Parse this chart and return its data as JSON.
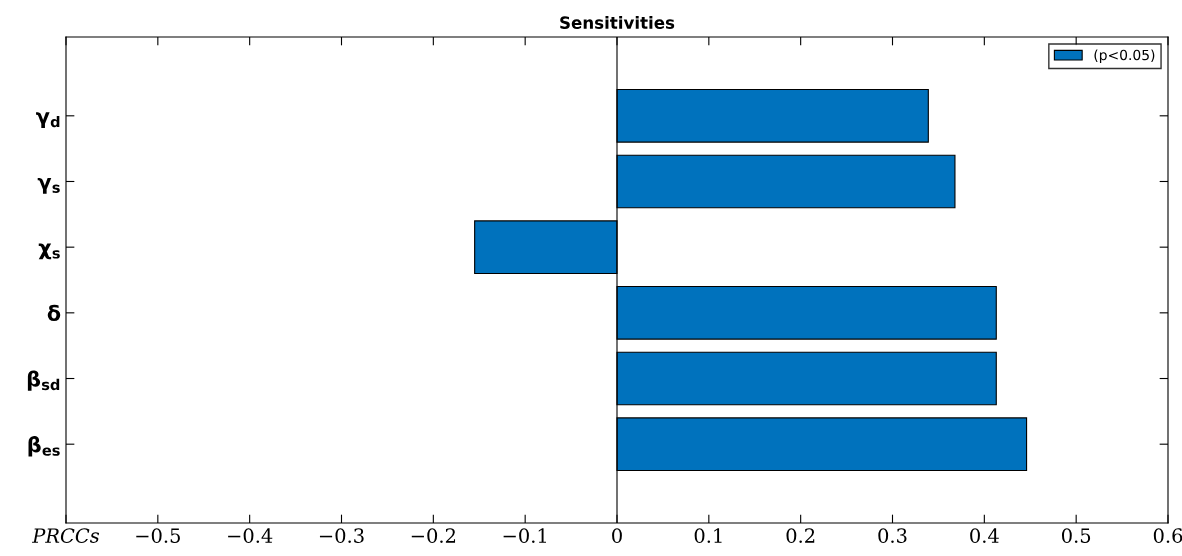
{
  "chart_data": {
    "type": "bar",
    "orientation": "horizontal",
    "title": "Sensitivities",
    "categories": [
      "γ$_{d}$",
      "γ$_{s}$",
      "χ$_{s}$",
      "δ",
      "β$_{sd}$",
      "β$_{es}$"
    ],
    "series": [
      {
        "name": "(p<0.05)",
        "color": "#0072bd",
        "values": [
          0.339,
          0.368,
          -0.155,
          0.413,
          0.413,
          0.446
        ]
      }
    ],
    "xlim": [
      -0.6,
      0.6
    ],
    "xticks": [
      {
        "value": -0.6,
        "label": "PRCCs"
      },
      {
        "value": -0.5,
        "label": "−0.5"
      },
      {
        "value": -0.4,
        "label": "−0.4"
      },
      {
        "value": -0.3,
        "label": "−0.3"
      },
      {
        "value": -0.2,
        "label": "−0.2"
      },
      {
        "value": -0.1,
        "label": "−0.1"
      },
      0,
      0.1,
      0.2,
      0.3,
      0.4,
      0.5,
      0.6
    ],
    "ref_lines": [
      {
        "axis": "x",
        "value": 0,
        "color": "#000000"
      }
    ],
    "grid": false,
    "legend": "top right"
  }
}
